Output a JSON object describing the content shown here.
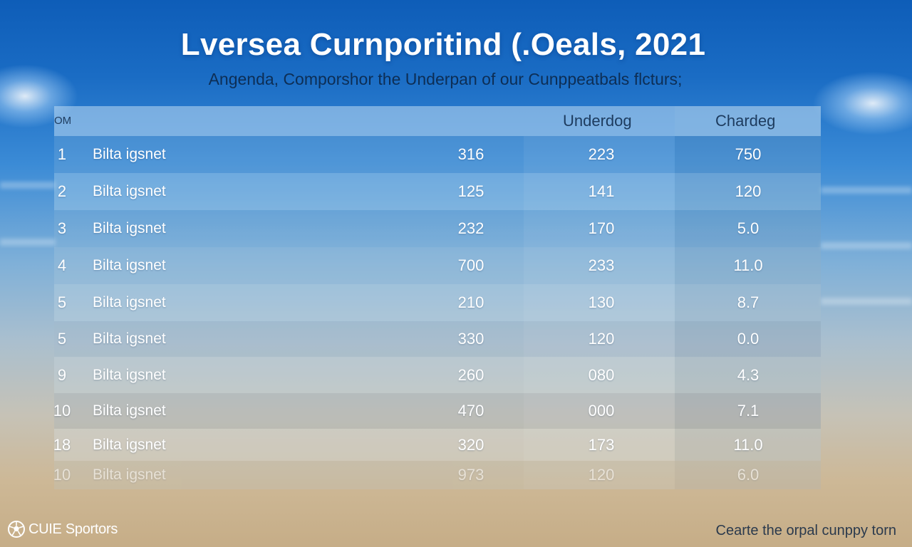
{
  "header": {
    "title": "Lversea Curnporitind (.Oeals, 2021",
    "subtitle": "Angenda, Comporshor the Underpan of our Cunppeatbals flcturs;"
  },
  "table": {
    "columns": [
      "OM",
      "",
      "",
      "Underdog",
      "Chardeg"
    ],
    "rows": [
      {
        "rank": "1",
        "name": "Bilta igsnet",
        "v1": "316",
        "v2": "223",
        "v3": "750"
      },
      {
        "rank": "2",
        "name": "Bilta igsnet",
        "v1": "125",
        "v2": "141",
        "v3": "120"
      },
      {
        "rank": "3",
        "name": "Bilta igsnet",
        "v1": "232",
        "v2": "170",
        "v3": "5.0"
      },
      {
        "rank": "4",
        "name": "Bilta igsnet",
        "v1": "700",
        "v2": "233",
        "v3": "11.0"
      },
      {
        "rank": "5",
        "name": "Bilta igsnet",
        "v1": "210",
        "v2": "130",
        "v3": "8.7"
      },
      {
        "rank": "5",
        "name": "Bilta igsnet",
        "v1": "330",
        "v2": "120",
        "v3": "0.0"
      },
      {
        "rank": "9",
        "name": "Bilta igsnet",
        "v1": "260",
        "v2": "080",
        "v3": "4.3"
      },
      {
        "rank": "10",
        "name": "Bilta igsnet",
        "v1": "470",
        "v2": "000",
        "v3": "7.1"
      },
      {
        "rank": "18",
        "name": "Bilta igsnet",
        "v1": "320",
        "v2": "173",
        "v3": "11.0"
      },
      {
        "rank": "10",
        "name": "Bilta igsnet",
        "v1": "973",
        "v2": "120",
        "v3": "6.0"
      }
    ]
  },
  "footer": {
    "logo_text": "CUIE Sportors",
    "logo_icon": "soccer-ball-icon",
    "tagline": "Cearte the orpal cunppy torn"
  },
  "colors": {
    "title": "#ffffff",
    "subtitle": "#0d2e55",
    "header_text": "#1d3b5e",
    "cell_text": "#ffffff"
  }
}
